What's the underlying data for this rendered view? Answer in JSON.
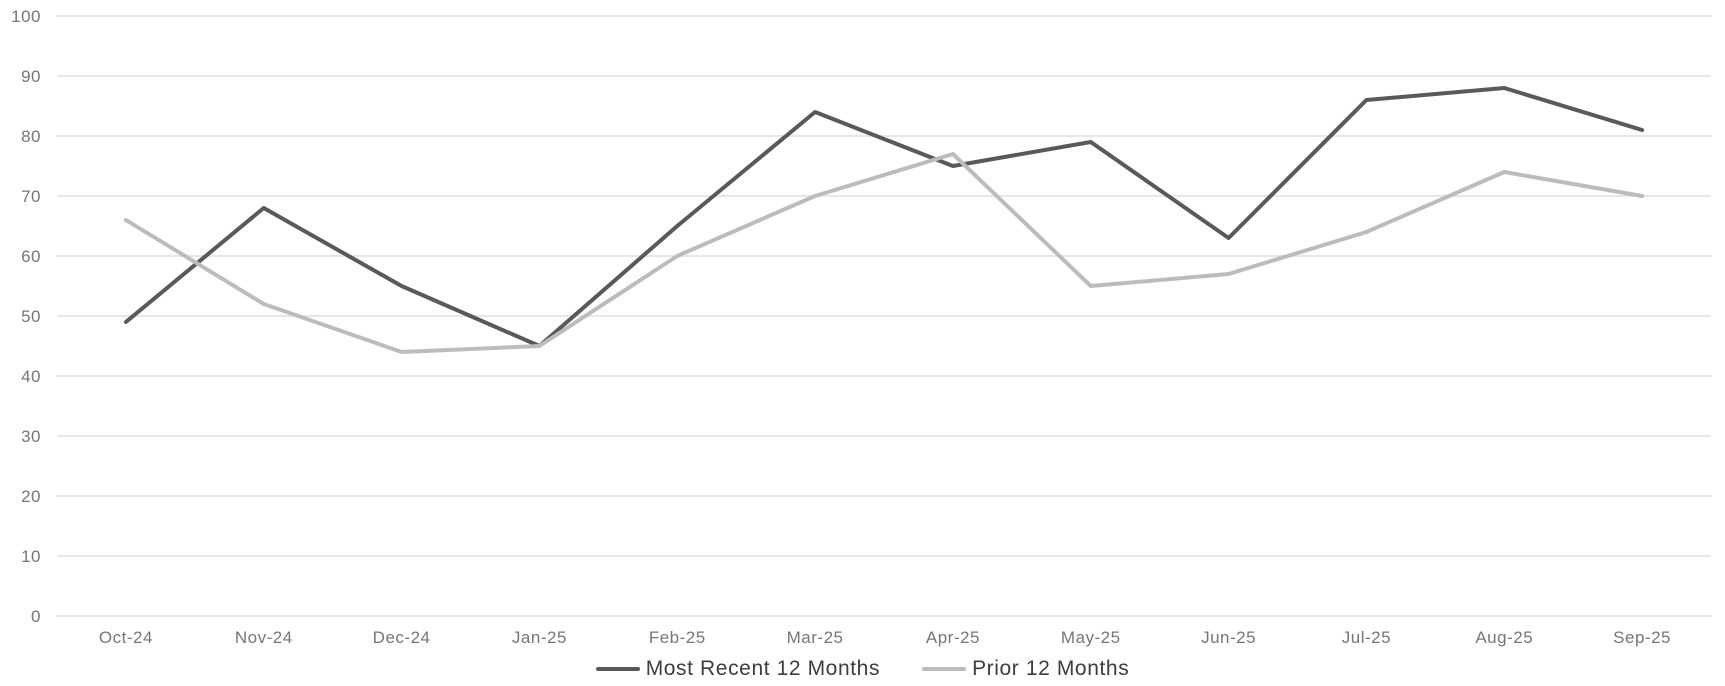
{
  "chart_data": {
    "type": "line",
    "title": "",
    "xlabel": "",
    "ylabel": "",
    "categories": [
      "Oct-24",
      "Nov-24",
      "Dec-24",
      "Jan-25",
      "Feb-25",
      "Mar-25",
      "Apr-25",
      "May-25",
      "Jun-25",
      "Jul-25",
      "Aug-25",
      "Sep-25"
    ],
    "series": [
      {
        "name": "Most Recent 12 Months",
        "color": "#595959",
        "values": [
          49,
          68,
          55,
          45,
          65,
          84,
          75,
          79,
          63,
          86,
          88,
          81
        ]
      },
      {
        "name": "Prior 12 Months",
        "color": "#bcbcbc",
        "values": [
          66,
          52,
          44,
          45,
          60,
          70,
          77,
          55,
          57,
          64,
          74,
          70
        ]
      }
    ],
    "y_axis": {
      "min": 0,
      "max": 100,
      "step": 10,
      "tick_labels": [
        "0",
        "10",
        "20",
        "30",
        "40",
        "50",
        "60",
        "70",
        "80",
        "90",
        "100"
      ]
    },
    "grid": true,
    "legend_position": "bottom"
  },
  "colors": {
    "background": "#ffffff",
    "gridline": "#e7e7e7",
    "axis_label": "#767676",
    "legend_text": "#3d3d3d"
  }
}
